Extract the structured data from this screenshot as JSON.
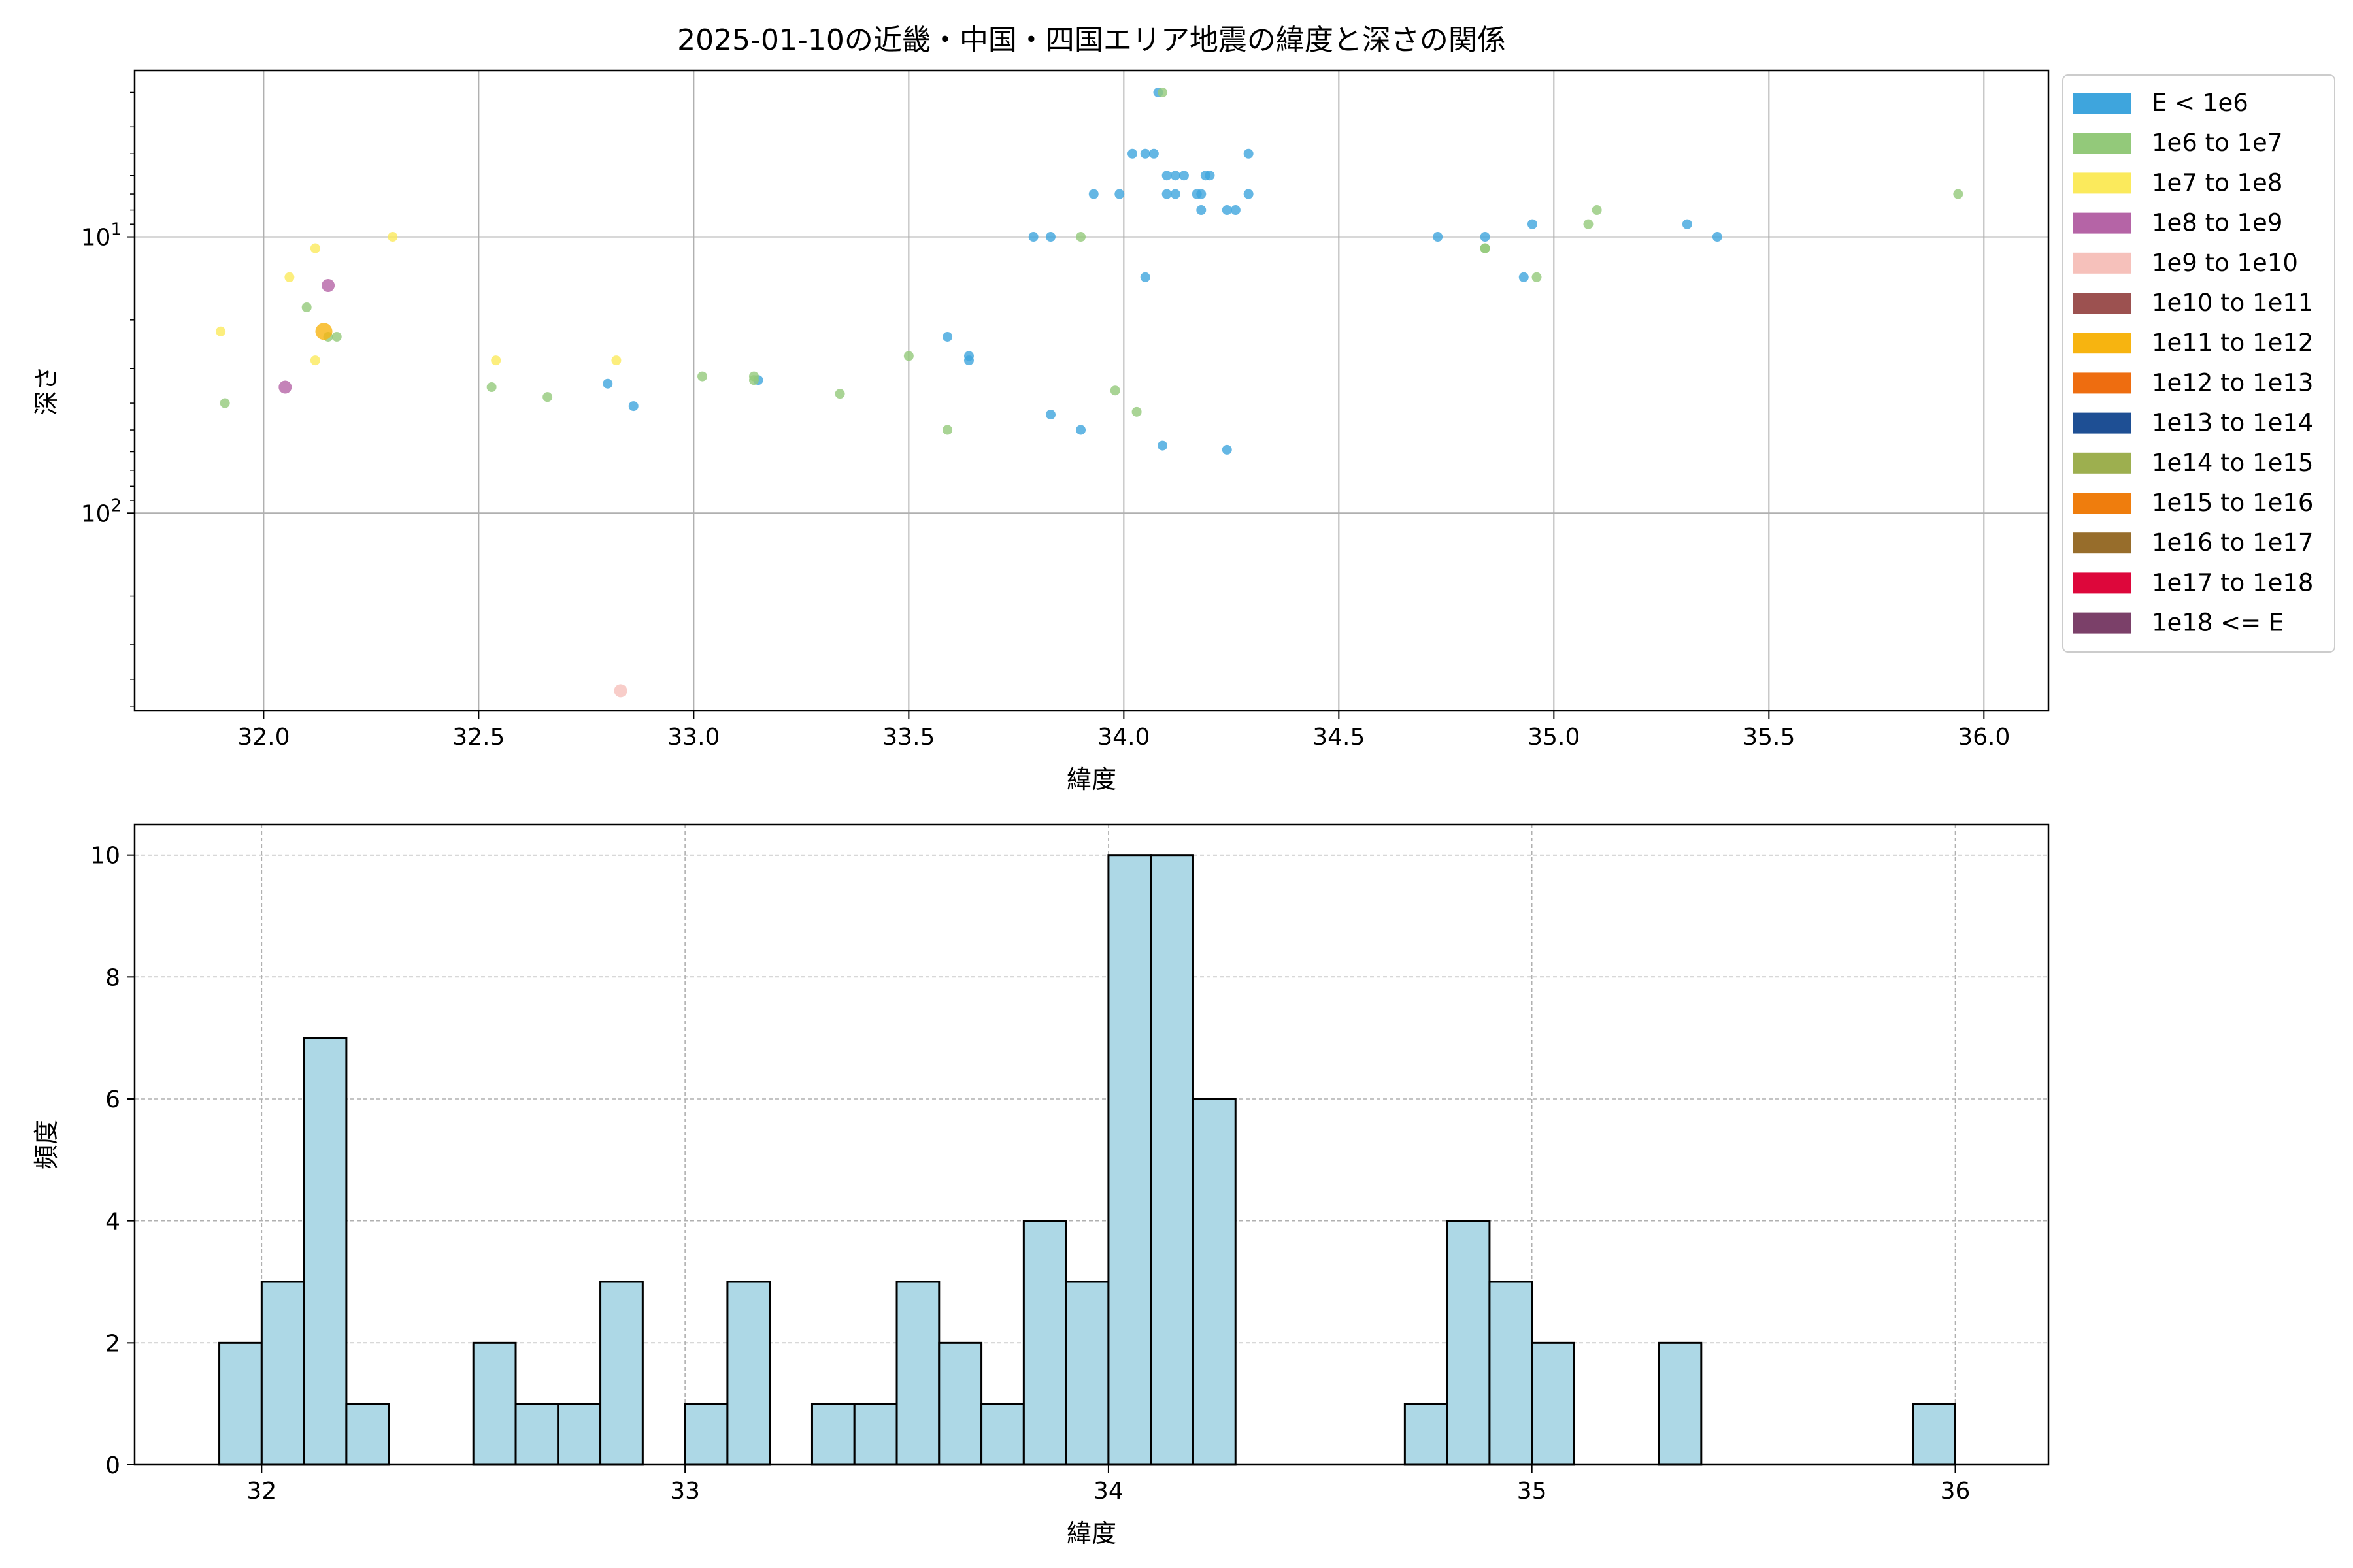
{
  "chart_data": [
    {
      "type": "scatter",
      "title": "2025-01-10の近畿・中国・四国エリア地震の緯度と深さの関係",
      "xlabel": "緯度",
      "ylabel": "深さ",
      "xlim": [
        31.7,
        36.15
      ],
      "ylim": [
        520,
        2.5
      ],
      "yscale": "log",
      "y_inverted": true,
      "grid": true,
      "xticks": [
        "32.0",
        "32.5",
        "33.0",
        "33.5",
        "34.0",
        "34.5",
        "35.0",
        "35.5",
        "36.0"
      ],
      "xtick_values": [
        32.0,
        32.5,
        33.0,
        33.5,
        34.0,
        34.5,
        35.0,
        35.5,
        36.0
      ],
      "yticks": [
        {
          "base": "10",
          "exp": "1",
          "value": 10
        },
        {
          "base": "10",
          "exp": "2",
          "value": 100
        }
      ],
      "legend_placement": "outside-right",
      "legend": [
        {
          "label": "E < 1e6",
          "color": "#3ea5dd"
        },
        {
          "label": "1e6 to 1e7",
          "color": "#93c97a"
        },
        {
          "label": "1e7 to 1e8",
          "color": "#fbea5c"
        },
        {
          "label": "1e8 to 1e9",
          "color": "#b564a6"
        },
        {
          "label": "1e9 to 1e10",
          "color": "#f6c1bb"
        },
        {
          "label": "1e10 to 1e11",
          "color": "#9c5150"
        },
        {
          "label": "1e11 to 1e12",
          "color": "#f7b410"
        },
        {
          "label": "1e12 to 1e13",
          "color": "#ee6d10"
        },
        {
          "label": "1e13 to 1e14",
          "color": "#1e4f94"
        },
        {
          "label": "1e14 to 1e15",
          "color": "#9daf4f"
        },
        {
          "label": "1e15 to 1e16",
          "color": "#ef7d0d"
        },
        {
          "label": "1e16 to 1e17",
          "color": "#976d2b"
        },
        {
          "label": "1e17 to 1e18",
          "color": "#dd073b"
        },
        {
          "label": "1e18 <= E",
          "color": "#7b4069"
        }
      ],
      "series": [
        {
          "class": 0,
          "points": [
            [
              34.08,
              3
            ],
            [
              34.02,
              5
            ],
            [
              34.05,
              5
            ],
            [
              34.07,
              5
            ],
            [
              34.29,
              5
            ],
            [
              34.19,
              6
            ],
            [
              34.12,
              6
            ],
            [
              34.14,
              6
            ],
            [
              34.1,
              6
            ],
            [
              34.2,
              6
            ],
            [
              33.93,
              7
            ],
            [
              33.99,
              7
            ],
            [
              34.1,
              7
            ],
            [
              34.12,
              7
            ],
            [
              34.17,
              7
            ],
            [
              34.18,
              7
            ],
            [
              34.29,
              7
            ],
            [
              34.18,
              8
            ],
            [
              34.24,
              8
            ],
            [
              34.26,
              8
            ],
            [
              33.79,
              10
            ],
            [
              33.83,
              10
            ],
            [
              34.73,
              10
            ],
            [
              34.84,
              10
            ],
            [
              35.38,
              10
            ],
            [
              34.95,
              9
            ],
            [
              35.31,
              9
            ],
            [
              34.05,
              14
            ],
            [
              34.93,
              14
            ],
            [
              33.59,
              23
            ],
            [
              33.64,
              27
            ],
            [
              33.64,
              28
            ],
            [
              33.15,
              33
            ],
            [
              32.8,
              34
            ],
            [
              32.86,
              41
            ],
            [
              33.83,
              44
            ],
            [
              33.9,
              50
            ],
            [
              34.09,
              57
            ],
            [
              34.24,
              59
            ]
          ]
        },
        {
          "class": 1,
          "points": [
            [
              34.09,
              3
            ],
            [
              35.94,
              7
            ],
            [
              35.1,
              8
            ],
            [
              35.08,
              9
            ],
            [
              33.9,
              10
            ],
            [
              34.84,
              11
            ],
            [
              34.84,
              11
            ],
            [
              34.96,
              14
            ],
            [
              32.1,
              18
            ],
            [
              32.15,
              23
            ],
            [
              32.17,
              23
            ],
            [
              33.5,
              27
            ],
            [
              33.02,
              32
            ],
            [
              33.14,
              32
            ],
            [
              33.14,
              33
            ],
            [
              32.53,
              35
            ],
            [
              33.98,
              36
            ],
            [
              33.34,
              37
            ],
            [
              32.66,
              38
            ],
            [
              31.91,
              40
            ],
            [
              34.03,
              43
            ],
            [
              33.59,
              50
            ]
          ]
        },
        {
          "class": 2,
          "points": [
            [
              32.3,
              10
            ],
            [
              32.12,
              11
            ],
            [
              32.06,
              14
            ],
            [
              31.9,
              22
            ],
            [
              32.12,
              28
            ],
            [
              32.54,
              28
            ],
            [
              32.82,
              28
            ]
          ]
        },
        {
          "class": 3,
          "points": [
            [
              32.15,
              15
            ],
            [
              32.05,
              35
            ]
          ]
        },
        {
          "class": 4,
          "points": [
            [
              32.83,
              440
            ]
          ]
        },
        {
          "class": 6,
          "points": [
            [
              32.14,
              22
            ]
          ]
        }
      ]
    },
    {
      "type": "bar",
      "title": "",
      "xlabel": "緯度",
      "ylabel": "頻度",
      "xlim": [
        31.7,
        36.22
      ],
      "ylim": [
        0,
        10.5
      ],
      "grid": true,
      "bar_color": "#add8e6",
      "xticks": [
        "32",
        "33",
        "34",
        "35",
        "36"
      ],
      "xtick_values": [
        32,
        33,
        34,
        35,
        36
      ],
      "yticks": [
        "0",
        "2",
        "4",
        "6",
        "8",
        "10"
      ],
      "ytick_values": [
        0,
        2,
        4,
        6,
        8,
        10
      ],
      "bin_start": 31.9,
      "bin_width": 0.1,
      "values": [
        2,
        3,
        7,
        1,
        0,
        0,
        2,
        1,
        1,
        3,
        0,
        1,
        3,
        0,
        1,
        1,
        3,
        2,
        1,
        4,
        3,
        10,
        10,
        6,
        0,
        0,
        0,
        0,
        1,
        4,
        3,
        2,
        0,
        0,
        2,
        0,
        0,
        0,
        0,
        0,
        1
      ]
    }
  ]
}
